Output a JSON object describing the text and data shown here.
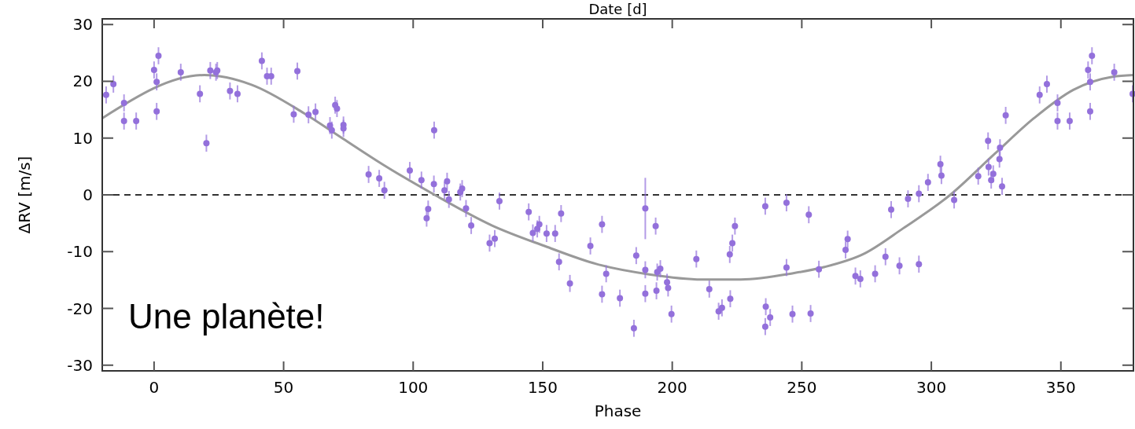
{
  "chart_data": {
    "type": "scatter",
    "xlabel": "Phase",
    "ylabel": "ΔRV [m/s]",
    "x2label": "Date [d]",
    "annotations": [
      "Une planète!"
    ],
    "xlim": [
      -20,
      378
    ],
    "ylim": [
      -31,
      31
    ],
    "xticks": [
      0,
      50,
      100,
      150,
      200,
      250,
      300,
      350
    ],
    "yticks": [
      -30,
      -20,
      -10,
      0,
      10,
      20,
      30
    ],
    "ref_lines": [
      {
        "axis": "y",
        "value": 0,
        "color": "#333333",
        "line_style": "dashed"
      }
    ],
    "series": [
      {
        "color": "#9370db",
        "marker": "circle",
        "x": [
          -18.5,
          -15.7,
          -11.6,
          -11.6,
          -6.9,
          0,
          1,
          1,
          1.7,
          10.3,
          17.7,
          20.2,
          21.7,
          23.9,
          24.4,
          29.3,
          32.2,
          41.6,
          43.6,
          45.2,
          53.9,
          55.3,
          59.6,
          62.3,
          67.9,
          68.6,
          69.9,
          70.6,
          73.1,
          73.1,
          82.8,
          86.9,
          88.9,
          98.7,
          103.2,
          105.2,
          105.8,
          108,
          108.1,
          112.1,
          113.1,
          113.8,
          118.2,
          118.9,
          120.4,
          122.4,
          129.5,
          131.5,
          133.3,
          144.6,
          146.2,
          147.9,
          148.7,
          151.5,
          154.8,
          156.3,
          157.1,
          160.5,
          168.4,
          172.9,
          172.9,
          174.5,
          179.8,
          185.2,
          186.1,
          189.6,
          189.6,
          189.6,
          193.6,
          193.9,
          194.2,
          195.4,
          198,
          198.4,
          199.7,
          209.3,
          214.3,
          217.9,
          219.2,
          222.2,
          222.4,
          223.2,
          224.2,
          235.9,
          235.9,
          236.1,
          237.8,
          244.1,
          244.1,
          246.4,
          252.7,
          253.4,
          256.6,
          266.9,
          267.7,
          270.7,
          272.6,
          278.3,
          282.3,
          284.5,
          287.7,
          291,
          295.2,
          295.2,
          298.7,
          303.5,
          303.9,
          308.8,
          318.1,
          321.9,
          322.1,
          323.1,
          323.9,
          326.3,
          326.5,
          327.3,
          328.7,
          341.8,
          344.6,
          348.7,
          348.7,
          353.4,
          360.5,
          361.3,
          361.3,
          362,
          370.6,
          377.7
        ],
        "values": [
          17.6,
          19.5,
          16.2,
          13.0,
          13.0,
          22.0,
          19.9,
          14.7,
          24.5,
          21.6,
          17.8,
          9.1,
          21.9,
          21.6,
          21.9,
          18.3,
          17.8,
          23.6,
          20.9,
          20.9,
          14.2,
          21.8,
          14.1,
          14.6,
          12.2,
          11.4,
          15.8,
          15.2,
          12.3,
          11.7,
          3.6,
          2.9,
          0.8,
          4.3,
          2.6,
          -4.1,
          -2.5,
          1.9,
          11.4,
          0.8,
          2.4,
          -0.8,
          0.5,
          1.1,
          -2.4,
          -5.4,
          -8.5,
          -7.7,
          -1.1,
          -3.0,
          -6.7,
          -6.0,
          -5.2,
          -6.8,
          -6.8,
          -11.8,
          -3.3,
          -15.6,
          -9.0,
          -5.2,
          -17.5,
          -13.9,
          -18.2,
          -23.5,
          -10.7,
          -2.4,
          -13.2,
          -17.4,
          -5.5,
          -16.9,
          -13.6,
          -13.0,
          -15.4,
          -16.4,
          -21.0,
          -11.3,
          -16.6,
          -20.5,
          -19.9,
          -10.5,
          -18.3,
          -8.5,
          -5.5,
          -2.0,
          -23.2,
          -19.7,
          -21.6,
          -1.4,
          -12.8,
          -21.0,
          -3.5,
          -20.9,
          -13.1,
          -9.7,
          -7.8,
          -14.3,
          -14.8,
          -13.9,
          -10.9,
          -2.6,
          -12.5,
          -0.7,
          0.2,
          -12.2,
          2.2,
          5.4,
          3.4,
          -0.9,
          3.3,
          9.5,
          4.9,
          2.6,
          3.7,
          6.3,
          8.3,
          1.5,
          14.0,
          17.6,
          19.5,
          16.2,
          13.0,
          13.0,
          22.0,
          19.9,
          14.7,
          24.5,
          21.6,
          17.8
        ],
        "errors": [
          1.5,
          1.5,
          1.5,
          1.5,
          1.5,
          1.5,
          1.5,
          1.5,
          1.5,
          1.5,
          1.5,
          1.5,
          1.5,
          1.5,
          1.5,
          1.5,
          1.5,
          1.5,
          1.5,
          1.5,
          1.5,
          1.5,
          1.5,
          1.5,
          1.5,
          1.5,
          1.5,
          1.5,
          1.5,
          1.5,
          1.5,
          1.5,
          1.5,
          1.5,
          1.5,
          1.5,
          1.5,
          1.5,
          1.5,
          1.5,
          1.5,
          1.5,
          1.5,
          1.5,
          1.5,
          1.5,
          1.5,
          1.5,
          1.5,
          1.5,
          1.5,
          1.5,
          1.5,
          1.5,
          1.5,
          1.5,
          1.5,
          1.5,
          1.5,
          1.5,
          1.5,
          1.5,
          1.5,
          1.5,
          1.5,
          [
            -7.8,
            3.0
          ],
          1.5,
          1.5,
          1.5,
          1.5,
          1.5,
          1.5,
          1.5,
          1.5,
          1.5,
          1.5,
          1.5,
          1.5,
          1.5,
          1.5,
          1.5,
          1.5,
          1.5,
          1.5,
          1.5,
          1.5,
          1.5,
          1.5,
          1.5,
          1.5,
          1.5,
          1.5,
          1.5,
          1.5,
          1.5,
          1.5,
          1.5,
          1.5,
          1.5,
          1.5,
          1.5,
          1.5,
          1.5,
          1.5,
          1.5,
          1.5,
          1.5,
          1.5,
          1.5,
          1.5,
          1.5,
          1.5,
          1.5,
          1.5,
          1.5,
          1.5,
          1.5,
          1.5,
          1.5,
          1.5,
          1.5,
          1.5,
          1.5,
          1.5,
          1.5,
          1.5,
          1.5,
          1.5
        ]
      },
      {
        "type": "line",
        "color": "#999999",
        "line_style": "solid",
        "marker": "none",
        "x": [
          -20,
          19.4,
          37.6,
          57.8,
          72.9,
          88.1,
          108.3,
          130.5,
          150.7,
          170.9,
          191.1,
          211.3,
          226.5,
          246.7,
          258.8,
          273.9,
          289.1,
          307.3,
          324.4,
          339.6,
          354.8,
          369.9,
          378
        ],
        "values": [
          13.5,
          21.1,
          19.4,
          14.4,
          9.9,
          5.4,
          0,
          -5.4,
          -9.0,
          -12.2,
          -14.0,
          -14.9,
          -14.9,
          -13.8,
          -12.7,
          -10.4,
          -5.9,
          0,
          7.2,
          13.5,
          18.5,
          20.8,
          21.1
        ]
      }
    ]
  }
}
